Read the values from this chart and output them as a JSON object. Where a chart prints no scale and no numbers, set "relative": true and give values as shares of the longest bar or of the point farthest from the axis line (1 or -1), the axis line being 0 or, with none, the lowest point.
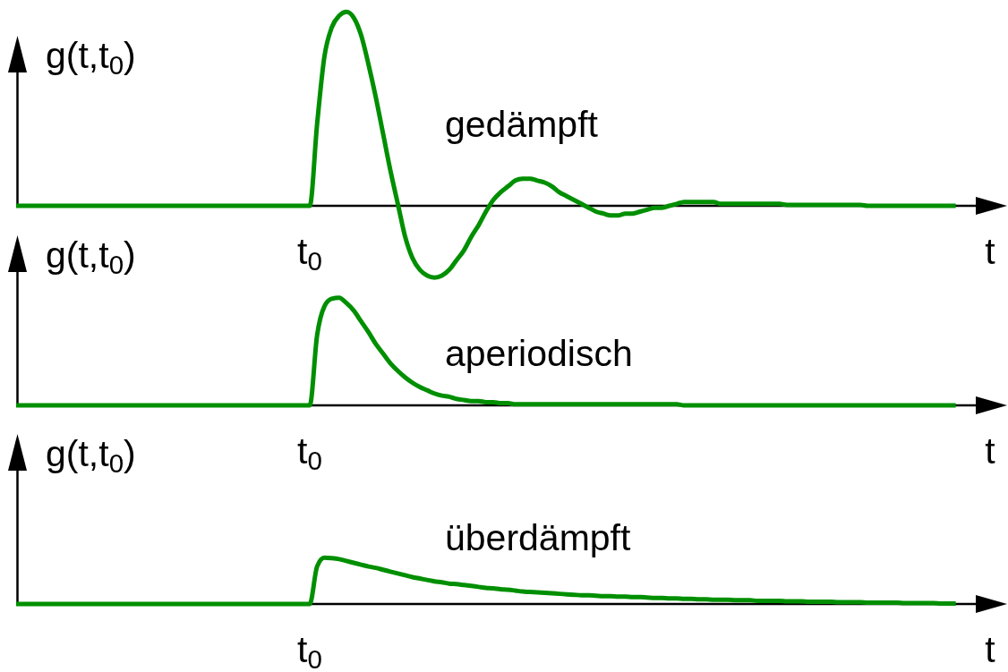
{
  "chart_data": [
    {
      "type": "line",
      "relative": true,
      "ylabel": "g(t,t$_{0}$)",
      "xlabel": "t",
      "annotations": [
        "t$_{0}$"
      ],
      "categories": [
        null,
        null,
        null,
        null,
        null,
        null,
        null,
        null,
        null,
        null,
        null,
        null,
        null,
        null,
        null,
        null,
        null,
        null,
        null,
        null,
        null,
        null,
        null,
        null,
        null,
        null,
        null,
        null,
        null,
        null,
        null,
        null,
        null,
        null,
        null,
        null,
        null,
        null,
        null,
        null,
        null,
        null,
        null,
        null,
        null,
        null,
        null,
        null,
        null,
        null,
        null,
        null,
        null,
        null,
        null,
        null,
        null,
        null,
        null,
        null,
        null,
        null,
        null,
        null,
        null,
        null,
        null,
        null,
        null,
        null,
        null,
        null,
        null,
        null,
        null,
        null,
        null,
        null,
        null,
        null,
        null,
        null,
        null,
        null,
        null,
        null,
        null,
        null,
        null,
        null,
        null,
        null,
        null,
        null,
        null,
        null,
        null,
        null,
        null,
        null,
        null,
        null,
        null,
        null,
        null,
        null,
        null,
        null,
        null,
        null,
        null,
        null,
        null,
        null,
        null,
        null,
        null,
        null,
        null,
        null,
        null,
        null,
        null,
        null,
        null,
        null,
        null,
        null,
        null
      ],
      "series": [
        {
          "name": "gedämpft",
          "color": "#008f00",
          "values": [
            0,
            0,
            0,
            0,
            0,
            0,
            0,
            0,
            0,
            0,
            0,
            0,
            0,
            0,
            0,
            0,
            0,
            0,
            0,
            0,
            0,
            0,
            0,
            0,
            0,
            0,
            0,
            0,
            0,
            0,
            0,
            0,
            0,
            0,
            0,
            0,
            0,
            0,
            0,
            0,
            0,
            0.42,
            0.77,
            0.92,
            0.98,
            1,
            0.97,
            0.88,
            0.73,
            0.56,
            0.37,
            0.18,
            0.01,
            -0.16,
            -0.27,
            -0.33,
            -0.36,
            -0.37,
            -0.36,
            -0.33,
            -0.28,
            -0.23,
            -0.16,
            -0.1,
            -0.03,
            0.03,
            0.07,
            0.1,
            0.13,
            0.14,
            0.14,
            0.13,
            0.12,
            0.1,
            0.07,
            0.05,
            0.03,
            0.01,
            -0.01,
            -0.03,
            -0.04,
            -0.05,
            -0.05,
            -0.04,
            -0.04,
            -0.03,
            -0.02,
            -0.01,
            -0.01,
            0,
            0.01,
            0.02,
            0.02,
            0.02,
            0.02,
            0.02,
            0.01,
            0.01,
            0.01,
            0.01,
            0.01,
            0.01,
            0.01,
            0.01,
            0.01,
            0.005,
            0.005,
            0.005,
            0.005,
            0.005,
            0.005,
            0.005,
            0.005,
            0.005,
            0.005,
            0.005,
            0,
            0,
            0,
            0,
            0,
            0,
            0,
            0,
            0,
            0,
            0,
            0,
            0
          ]
        }
      ]
    },
    {
      "type": "line",
      "relative": true,
      "ylabel": "g(t,t$_{0}$)",
      "xlabel": "t",
      "annotations": [
        "t$_{0}$"
      ],
      "categories": [
        null,
        null,
        null,
        null,
        null,
        null,
        null,
        null,
        null,
        null,
        null,
        null,
        null,
        null,
        null,
        null,
        null,
        null,
        null,
        null,
        null,
        null,
        null,
        null,
        null,
        null,
        null,
        null,
        null,
        null,
        null,
        null,
        null,
        null,
        null,
        null,
        null,
        null,
        null,
        null,
        null,
        null,
        null,
        null,
        null,
        null,
        null,
        null,
        null,
        null,
        null,
        null,
        null,
        null,
        null,
        null,
        null,
        null,
        null,
        null,
        null,
        null,
        null,
        null,
        null,
        null,
        null,
        null,
        null,
        null,
        null,
        null,
        null,
        null,
        null,
        null,
        null,
        null,
        null,
        null,
        null,
        null,
        null,
        null,
        null,
        null,
        null,
        null,
        null,
        null,
        null,
        null,
        null,
        null,
        null,
        null,
        null,
        null,
        null,
        null,
        null,
        null,
        null,
        null,
        null,
        null,
        null,
        null,
        null,
        null,
        null,
        null,
        null,
        null,
        null,
        null,
        null,
        null,
        null,
        null,
        null,
        null,
        null,
        null,
        null,
        null,
        null,
        null,
        null
      ],
      "series": [
        {
          "name": "aperiodisch",
          "color": "#008f00",
          "values": [
            0,
            0,
            0,
            0,
            0,
            0,
            0,
            0,
            0,
            0,
            0,
            0,
            0,
            0,
            0,
            0,
            0,
            0,
            0,
            0,
            0,
            0,
            0,
            0,
            0,
            0,
            0,
            0,
            0,
            0,
            0,
            0,
            0,
            0,
            0,
            0,
            0,
            0,
            0,
            0,
            0,
            0.65,
            0.92,
            0.99,
            1,
            0.95,
            0.88,
            0.78,
            0.68,
            0.57,
            0.48,
            0.39,
            0.32,
            0.26,
            0.21,
            0.17,
            0.14,
            0.11,
            0.09,
            0.08,
            0.06,
            0.05,
            0.04,
            0.04,
            0.03,
            0.03,
            0.02,
            0.02,
            0.01,
            0.01,
            0.01,
            0.01,
            0.01,
            0.01,
            0.01,
            0.01,
            0.01,
            0.01,
            0.01,
            0.01,
            0.01,
            0.01,
            0.01,
            0.01,
            0.01,
            0.01,
            0.01,
            0.01,
            0.01,
            0.01,
            0.01,
            0,
            0,
            0,
            0,
            0,
            0,
            0,
            0,
            0,
            0,
            0,
            0,
            0,
            0,
            0,
            0,
            0,
            0,
            0,
            0,
            0,
            0,
            0,
            0,
            0,
            0,
            0,
            0,
            0,
            0,
            0,
            0,
            0,
            0,
            0,
            0,
            0,
            0
          ]
        }
      ]
    },
    {
      "type": "line",
      "relative": true,
      "ylabel": "g(t,t$_{0}$)",
      "xlabel": "t",
      "annotations": [
        "t$_{0}$"
      ],
      "categories": [
        null,
        null,
        null,
        null,
        null,
        null,
        null,
        null,
        null,
        null,
        null,
        null,
        null,
        null,
        null,
        null,
        null,
        null,
        null,
        null,
        null,
        null,
        null,
        null,
        null,
        null,
        null,
        null,
        null,
        null,
        null,
        null,
        null,
        null,
        null,
        null,
        null,
        null,
        null,
        null,
        null,
        null,
        null,
        null,
        null,
        null,
        null,
        null,
        null,
        null,
        null,
        null,
        null,
        null,
        null,
        null,
        null,
        null,
        null,
        null,
        null,
        null,
        null,
        null,
        null,
        null,
        null,
        null,
        null,
        null,
        null,
        null,
        null,
        null,
        null,
        null,
        null,
        null,
        null,
        null,
        null,
        null,
        null,
        null,
        null,
        null,
        null,
        null,
        null,
        null,
        null,
        null,
        null,
        null,
        null,
        null,
        null,
        null,
        null,
        null,
        null,
        null,
        null,
        null,
        null,
        null,
        null,
        null,
        null,
        null,
        null,
        null,
        null,
        null,
        null,
        null,
        null,
        null,
        null,
        null,
        null,
        null,
        null,
        null,
        null,
        null,
        null,
        null,
        null
      ],
      "series": [
        {
          "name": "überdämpft",
          "color": "#008f00",
          "values": [
            0,
            0,
            0,
            0,
            0,
            0,
            0,
            0,
            0,
            0,
            0,
            0,
            0,
            0,
            0,
            0,
            0,
            0,
            0,
            0,
            0,
            0,
            0,
            0,
            0,
            0,
            0,
            0,
            0,
            0,
            0,
            0,
            0,
            0,
            0,
            0,
            0,
            0,
            0,
            0,
            0,
            0.81,
            1,
            0.99,
            0.97,
            0.93,
            0.89,
            0.85,
            0.81,
            0.78,
            0.74,
            0.7,
            0.66,
            0.62,
            0.58,
            0.55,
            0.52,
            0.49,
            0.47,
            0.44,
            0.43,
            0.41,
            0.39,
            0.37,
            0.35,
            0.34,
            0.32,
            0.31,
            0.29,
            0.27,
            0.26,
            0.25,
            0.24,
            0.23,
            0.22,
            0.21,
            0.2,
            0.19,
            0.19,
            0.18,
            0.17,
            0.17,
            0.16,
            0.16,
            0.15,
            0.15,
            0.14,
            0.13,
            0.13,
            0.12,
            0.12,
            0.11,
            0.11,
            0.1,
            0.1,
            0.09,
            0.09,
            0.09,
            0.08,
            0.08,
            0.08,
            0.07,
            0.07,
            0.07,
            0.07,
            0.06,
            0.06,
            0.06,
            0.05,
            0.05,
            0.05,
            0.05,
            0.04,
            0.04,
            0.04,
            0.04,
            0.03,
            0.03,
            0.03,
            0.03,
            0.03,
            0.02,
            0.02,
            0.02,
            0.02,
            0.02,
            0.01,
            0.01,
            0.01
          ]
        }
      ]
    }
  ]
}
